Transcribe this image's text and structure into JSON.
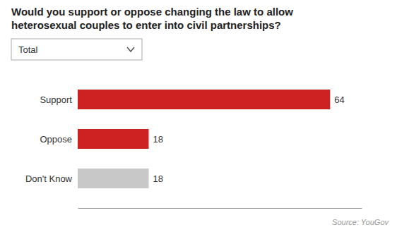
{
  "chart_data": {
    "type": "bar",
    "orientation": "horizontal",
    "title": "Would you support or oppose changing the law to allow heterosexual couples to enter into civil partnerships?",
    "categories": [
      "Support",
      "Oppose",
      "Don't Know"
    ],
    "values": [
      64,
      18,
      18
    ],
    "colors": [
      "#cc2222",
      "#cc2222",
      "#c8c8c8"
    ],
    "xlim": [
      0,
      72
    ],
    "tick_labels": false,
    "grid": false,
    "data_labels": true,
    "annotations": [
      "Total",
      "Source: YouGov"
    ]
  }
}
